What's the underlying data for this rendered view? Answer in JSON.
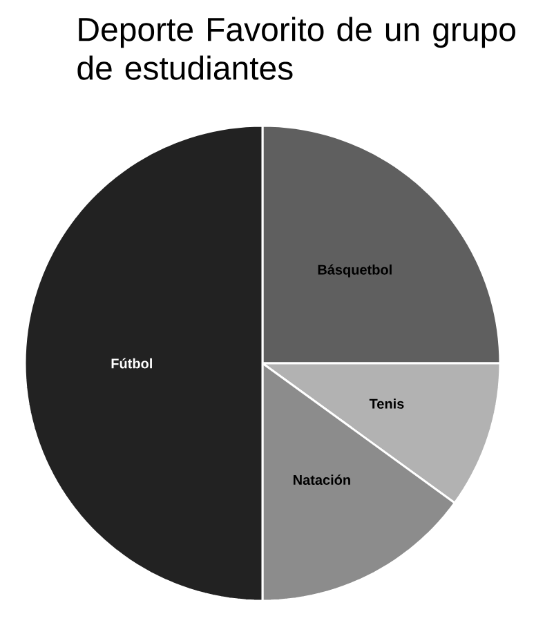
{
  "chart_data": {
    "type": "pie",
    "title": "Deporte Favorito de un grupo de estudiantes",
    "categories": [
      "Básquetbol",
      "Tenis",
      "Natación",
      "Fútbol"
    ],
    "values": [
      25,
      10,
      15,
      50
    ],
    "colors": [
      "#5f5f5f",
      "#b2b2b2",
      "#8c8c8c",
      "#222222"
    ]
  }
}
